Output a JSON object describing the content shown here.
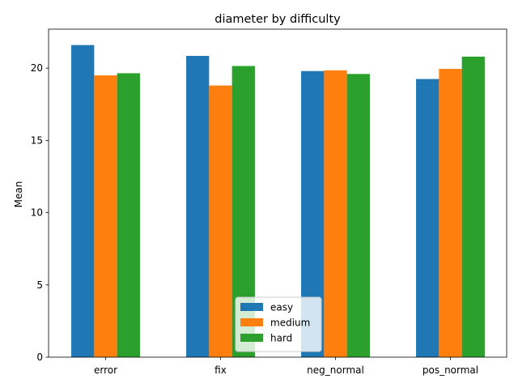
{
  "chart_data": {
    "type": "bar",
    "title": "diameter by difficulty",
    "xlabel": "",
    "ylabel": "Mean",
    "categories": [
      "error",
      "fix",
      "neg_normal",
      "pos_normal"
    ],
    "series": [
      {
        "name": "easy",
        "color": "#1f77b4",
        "values": [
          21.6,
          20.85,
          19.8,
          19.25
        ]
      },
      {
        "name": "medium",
        "color": "#ff7f0e",
        "values": [
          19.5,
          18.8,
          19.85,
          19.95
        ]
      },
      {
        "name": "hard",
        "color": "#2ca02c",
        "values": [
          19.65,
          20.15,
          19.6,
          20.8
        ]
      }
    ],
    "ylim": [
      0,
      22.7
    ],
    "yticks": [
      0,
      5,
      10,
      15,
      20
    ],
    "grid": false,
    "legend_position": "lower-center"
  }
}
